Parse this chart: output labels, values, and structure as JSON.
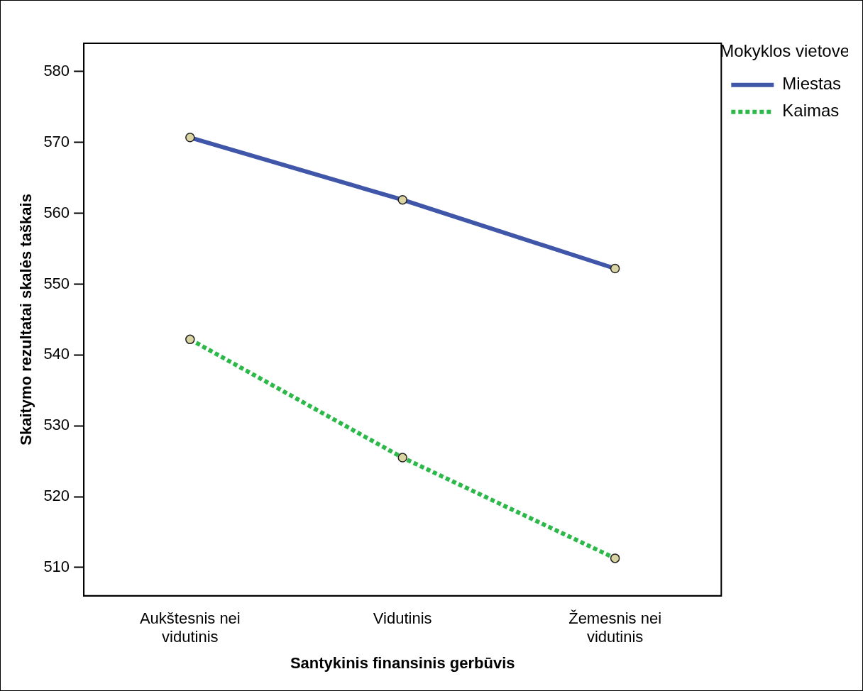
{
  "chart_data": {
    "type": "line",
    "xlabel": "Santykinis finansinis gerbūvis",
    "ylabel": "Skaitymo rezultatai skalės taškais",
    "legend_title": "Mokyklos vietove",
    "categories": [
      "Aukštesnis nei vidutinis",
      "Vidutinis",
      "Žemesnis nei vidutinis"
    ],
    "series": [
      {
        "name": "Miestas",
        "color": "#4056a8",
        "line_style": "solid",
        "values": [
          570.7,
          561.9,
          552.2
        ]
      },
      {
        "name": "Kaimas",
        "color": "#2db84a",
        "line_style": "dotted",
        "values": [
          542.2,
          525.5,
          511.3
        ]
      }
    ],
    "ylim": [
      506,
      584
    ],
    "yticks": [
      510,
      520,
      530,
      540,
      550,
      560,
      570,
      580
    ],
    "grid": false,
    "legend": "right",
    "marker": "circle"
  }
}
